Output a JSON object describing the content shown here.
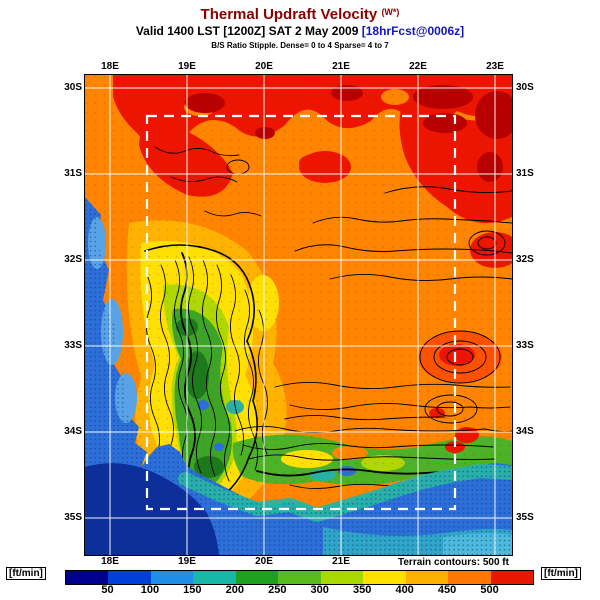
{
  "header": {
    "title": "Thermal Updraft Velocity",
    "title_suffix": "(W*)",
    "valid_main": "Valid 1400 LST [1200Z] SAT 2 May 2009 ",
    "valid_fcst": "[18hrFcst@0006z]",
    "stipple_line": "B/S Ratio Stipple. Dense= 0 to 4  Sparse= 4 to 7"
  },
  "map": {
    "lon_top": [
      "18E",
      "19E",
      "20E",
      "21E",
      "22E",
      "23E"
    ],
    "lon_bottom": [
      "18E",
      "19E",
      "20E",
      "21E"
    ],
    "lat_left": [
      "30S",
      "31S",
      "32S",
      "33S",
      "34S",
      "35S"
    ],
    "lat_right": [
      "30S",
      "31S",
      "32S",
      "33S",
      "34S",
      "35S"
    ]
  },
  "legend": {
    "unit_left": "[ft/min]",
    "unit_right": "[ft/min]",
    "terrain_note": "Terrain contours: 500 ft",
    "ticks": [
      "50",
      "100",
      "150",
      "200",
      "250",
      "300",
      "350",
      "400",
      "450",
      "500"
    ],
    "colors": [
      "#00008f",
      "#0040d8",
      "#1e8fe8",
      "#18b8a8",
      "#1fa01f",
      "#58bc1c",
      "#a8d800",
      "#ffe000",
      "#ffb000",
      "#ff7700",
      "#e81800"
    ]
  },
  "theme": {
    "title_color": "#8b0000",
    "fcst_color": "#1414c8",
    "land": "#ff8400",
    "ocean": "#2d6fd8"
  },
  "chart_data": {
    "type": "heatmap",
    "title": "Thermal Updraft Velocity (W*)",
    "valid": "Valid 1400 LST [1200Z] SAT 2 May 2009 [18hrFcst@0006z]",
    "units": "ft/min",
    "scale_ticks": [
      50,
      100,
      150,
      200,
      250,
      300,
      350,
      400,
      450,
      500
    ],
    "lon_labels": [
      "18E",
      "19E",
      "20E",
      "21E",
      "22E",
      "23E"
    ],
    "lat_labels": [
      "30S",
      "31S",
      "32S",
      "33S",
      "34S",
      "35S"
    ],
    "terrain_contours_interval_ft": 500,
    "stipple": "B/S Ratio Stipple. Dense= 0 to 4 Sparse= 4 to 7",
    "description": "Forecast thermal updraft velocity over the Western Cape, South Africa; strong lift (400-500 ft/min, orange/red) inland to the north, weak lift (50-200, blue/green) over ocean and coastal mountain valleys."
  }
}
